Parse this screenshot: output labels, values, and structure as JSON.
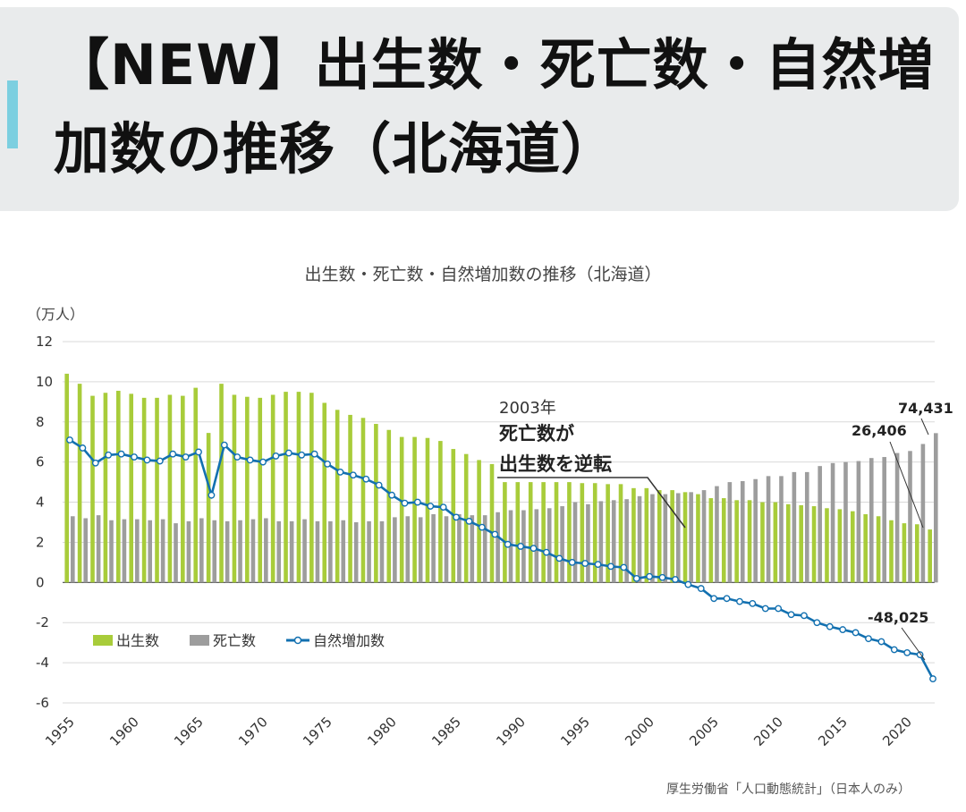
{
  "header": {
    "title": "【NEW】出生数・死亡数・自然増加数の推移（北海道）"
  },
  "chart_title": "出生数・死亡数・自然増加数の推移（北海道）",
  "unit_label": "（万人）",
  "source": "厚生労働省「人口動態統計」（日本人のみ）",
  "annotation": {
    "year": "2003年",
    "line1": "死亡数が",
    "line2": "出生数を逆転"
  },
  "value_labels": {
    "deaths_last": "74,431",
    "births_last": "26,406",
    "natural_last": "-48,025"
  },
  "colors": {
    "births": "#a8cc3a",
    "deaths": "#9d9d9d",
    "natural": "#1270b0"
  },
  "chart_data": {
    "type": "bar",
    "ylim": [
      -6,
      12
    ],
    "yticks": [
      -6,
      -4,
      -2,
      0,
      2,
      4,
      6,
      8,
      10,
      12
    ],
    "xticks": [
      1955,
      1960,
      1965,
      1970,
      1975,
      1980,
      1985,
      1990,
      1995,
      2000,
      2005,
      2010,
      2015,
      2020
    ],
    "x_start": 1955,
    "x_end": 2022,
    "legend_position": "bottom-left",
    "grid": true,
    "series": [
      {
        "name": "出生数",
        "type": "bar",
        "values": [
          10.4,
          9.9,
          9.3,
          9.45,
          9.55,
          9.4,
          9.2,
          9.2,
          9.35,
          9.3,
          9.7,
          7.45,
          9.9,
          9.35,
          9.25,
          9.2,
          9.35,
          9.5,
          9.5,
          9.45,
          8.95,
          8.6,
          8.35,
          8.2,
          7.9,
          7.6,
          7.25,
          7.25,
          7.2,
          7.05,
          6.65,
          6.4,
          6.1,
          5.9,
          5.0,
          5.0,
          5.0,
          5.0,
          5.0,
          5.0,
          4.95,
          4.95,
          4.9,
          4.9,
          4.7,
          4.7,
          4.6,
          4.6,
          4.5,
          4.4,
          4.2,
          4.2,
          4.1,
          4.1,
          4.0,
          4.0,
          3.9,
          3.85,
          3.8,
          3.7,
          3.65,
          3.55,
          3.4,
          3.3,
          3.1,
          2.95,
          2.9,
          2.64
        ]
      },
      {
        "name": "死亡数",
        "type": "bar",
        "values": [
          3.3,
          3.2,
          3.35,
          3.1,
          3.15,
          3.15,
          3.1,
          3.15,
          2.95,
          3.05,
          3.2,
          3.1,
          3.05,
          3.1,
          3.15,
          3.2,
          3.05,
          3.05,
          3.15,
          3.05,
          3.05,
          3.1,
          3.0,
          3.05,
          3.05,
          3.25,
          3.3,
          3.25,
          3.4,
          3.3,
          3.4,
          3.35,
          3.35,
          3.5,
          3.6,
          3.6,
          3.65,
          3.7,
          3.8,
          4.0,
          3.9,
          4.05,
          4.1,
          4.15,
          4.3,
          4.4,
          4.4,
          4.45,
          4.5,
          4.6,
          4.8,
          5.0,
          5.05,
          5.15,
          5.3,
          5.3,
          5.5,
          5.5,
          5.8,
          5.95,
          6.0,
          6.05,
          6.2,
          6.25,
          6.45,
          6.55,
          6.9,
          7.44
        ]
      },
      {
        "name": "自然増加数",
        "type": "line",
        "values": [
          7.1,
          6.7,
          5.95,
          6.35,
          6.4,
          6.25,
          6.1,
          6.05,
          6.4,
          6.25,
          6.5,
          4.35,
          6.85,
          6.25,
          6.1,
          6.0,
          6.3,
          6.45,
          6.35,
          6.4,
          5.9,
          5.5,
          5.35,
          5.15,
          4.85,
          4.35,
          3.95,
          4.0,
          3.8,
          3.75,
          3.25,
          3.05,
          2.75,
          2.4,
          1.9,
          1.8,
          1.7,
          1.5,
          1.2,
          1.0,
          0.95,
          0.9,
          0.8,
          0.75,
          0.2,
          0.3,
          0.25,
          0.15,
          -0.1,
          -0.3,
          -0.8,
          -0.8,
          -0.95,
          -1.05,
          -1.3,
          -1.3,
          -1.6,
          -1.65,
          -2.0,
          -2.2,
          -2.35,
          -2.5,
          -2.8,
          -2.95,
          -3.35,
          -3.5,
          -3.6,
          -4.8
        ]
      }
    ]
  }
}
